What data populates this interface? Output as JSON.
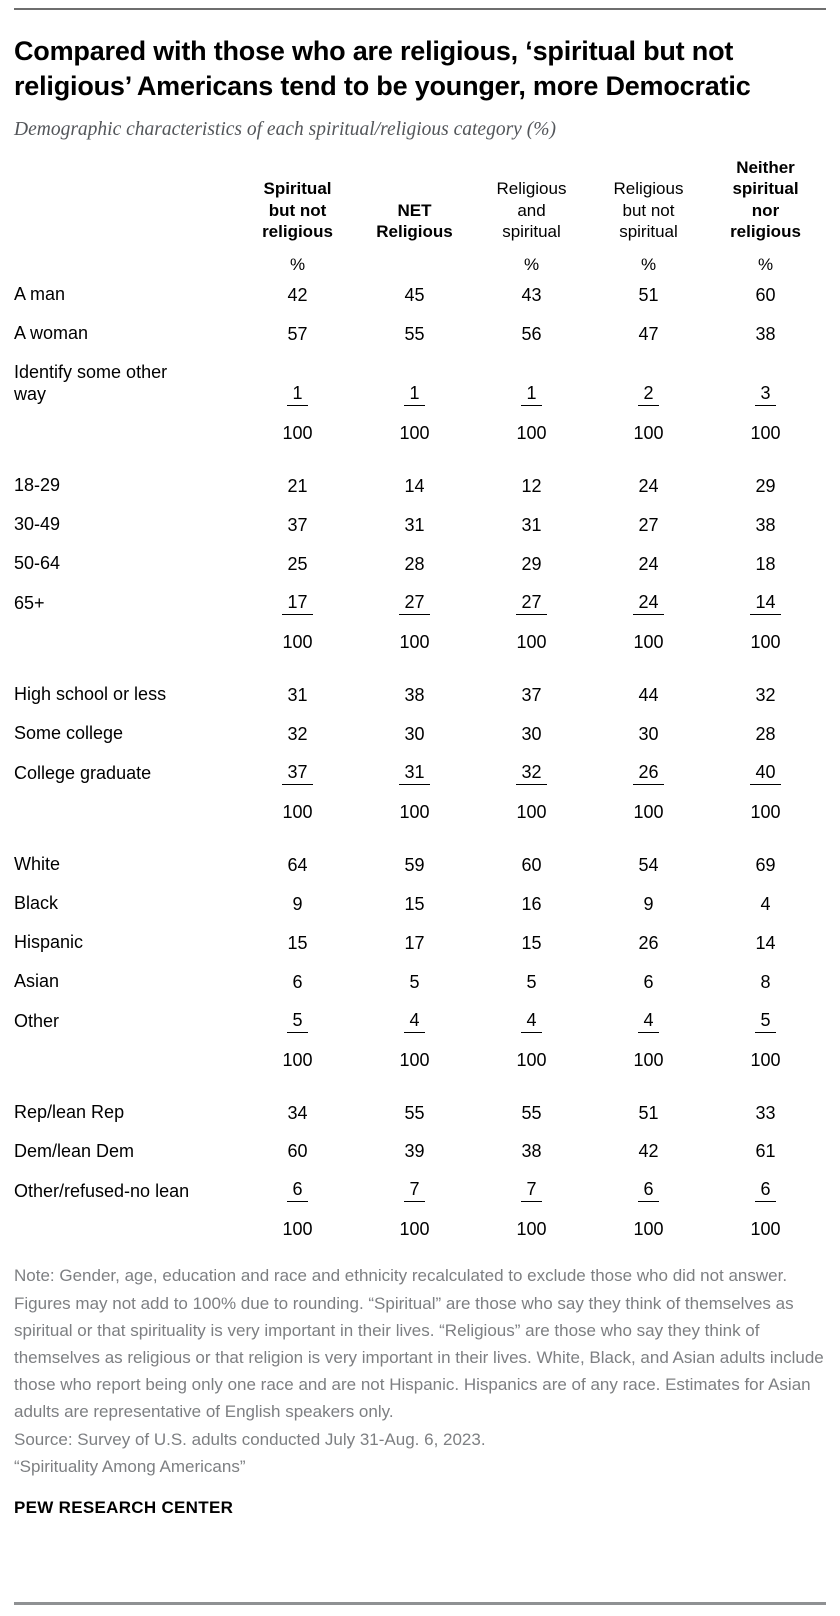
{
  "chart_data": {
    "type": "table",
    "title": "Compared with those who are religious, ‘spiritual but not religious’ Americans tend to be younger, more Democratic",
    "subtitle": "Demographic characteristics of each spiritual/religious category (%)",
    "columns": [
      {
        "label": "Spiritual\nbut not\nreligious",
        "bold": true,
        "unit": "%"
      },
      {
        "label": "NET\nReligious",
        "bold": true,
        "unit": ""
      },
      {
        "label": "Religious\nand\nspiritual",
        "bold": false,
        "unit": "%"
      },
      {
        "label": "Religious\nbut not\nspiritual",
        "bold": false,
        "unit": "%"
      },
      {
        "label": "Neither\nspiritual\nnor\nreligious",
        "bold": true,
        "unit": "%"
      }
    ],
    "sections": [
      {
        "rows": [
          {
            "label": "A man",
            "values": [
              "42",
              "45",
              "43",
              "51",
              "60"
            ]
          },
          {
            "label": "A woman",
            "values": [
              "57",
              "55",
              "56",
              "47",
              "38"
            ]
          },
          {
            "label": "Identify some other\nway",
            "values": [
              "1",
              "1",
              "1",
              "2",
              "3"
            ],
            "underline": true
          }
        ],
        "total": [
          "100",
          "100",
          "100",
          "100",
          "100"
        ]
      },
      {
        "rows": [
          {
            "label": "18-29",
            "values": [
              "21",
              "14",
              "12",
              "24",
              "29"
            ]
          },
          {
            "label": "30-49",
            "values": [
              "37",
              "31",
              "31",
              "27",
              "38"
            ]
          },
          {
            "label": "50-64",
            "values": [
              "25",
              "28",
              "29",
              "24",
              "18"
            ]
          },
          {
            "label": "65+",
            "values": [
              "17",
              "27",
              "27",
              "24",
              "14"
            ],
            "underline": true
          }
        ],
        "total": [
          "100",
          "100",
          "100",
          "100",
          "100"
        ]
      },
      {
        "rows": [
          {
            "label": "High school or less",
            "values": [
              "31",
              "38",
              "37",
              "44",
              "32"
            ]
          },
          {
            "label": "Some college",
            "values": [
              "32",
              "30",
              "30",
              "30",
              "28"
            ]
          },
          {
            "label": "College graduate",
            "values": [
              "37",
              "31",
              "32",
              "26",
              "40"
            ],
            "underline": true
          }
        ],
        "total": [
          "100",
          "100",
          "100",
          "100",
          "100"
        ]
      },
      {
        "rows": [
          {
            "label": "White",
            "values": [
              "64",
              "59",
              "60",
              "54",
              "69"
            ]
          },
          {
            "label": "Black",
            "values": [
              "9",
              "15",
              "16",
              "9",
              "4"
            ]
          },
          {
            "label": "Hispanic",
            "values": [
              "15",
              "17",
              "15",
              "26",
              "14"
            ]
          },
          {
            "label": "Asian",
            "values": [
              "6",
              "5",
              "5",
              "6",
              "8"
            ]
          },
          {
            "label": "Other",
            "values": [
              "5",
              "4",
              "4",
              "4",
              "5"
            ],
            "underline": true
          }
        ],
        "total": [
          "100",
          "100",
          "100",
          "100",
          "100"
        ]
      },
      {
        "rows": [
          {
            "label": "Rep/lean Rep",
            "values": [
              "34",
              "55",
              "55",
              "51",
              "33"
            ]
          },
          {
            "label": "Dem/lean Dem",
            "values": [
              "60",
              "39",
              "38",
              "42",
              "61"
            ]
          },
          {
            "label": "Other/refused-no lean",
            "values": [
              "6",
              "7",
              "7",
              "6",
              "6"
            ],
            "underline": true
          }
        ],
        "total": [
          "100",
          "100",
          "100",
          "100",
          "100"
        ]
      }
    ]
  },
  "notes": {
    "note": "Note: Gender, age, education and race and ethnicity recalculated to exclude those who did not answer. Figures may not add to 100% due to rounding. “Spiritual” are those who say they think of themselves as spiritual or that spirituality is very important in their lives. “Religious” are those who say they think of themselves as religious or that religion is very important in their lives. White, Black, and Asian adults include those who report being only one race and are not Hispanic. Hispanics are of any race. Estimates for Asian adults are representative of English speakers only.",
    "source": "Source: Survey of U.S. adults conducted July 31-Aug. 6, 2023.",
    "report": "“Spirituality Among Americans”"
  },
  "footer": {
    "brand": "PEW RESEARCH CENTER"
  },
  "style": {
    "title_color": "#000000",
    "subtitle_color": "#53565a",
    "note_color": "#7d7f82",
    "rule_color": "#8f9193"
  }
}
